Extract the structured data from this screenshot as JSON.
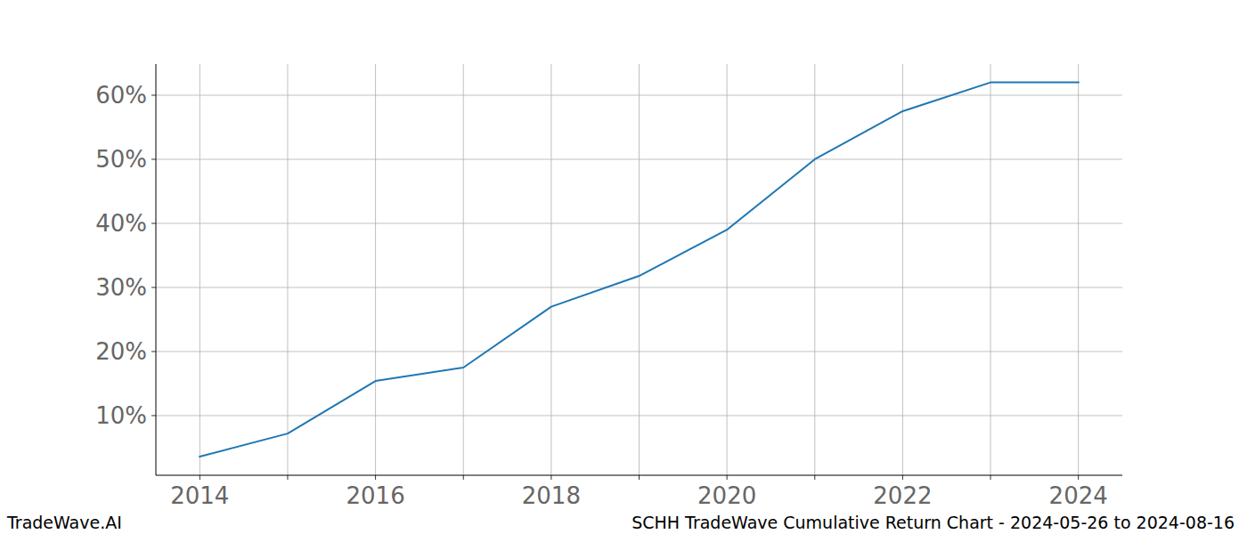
{
  "chart_data": {
    "type": "line",
    "title": "SCHH TradeWave Cumulative Return Chart - 2024-05-26 to 2024-08-16",
    "watermark": "TradeWave.AI",
    "x": [
      2014,
      2015,
      2016,
      2017,
      2018,
      2019,
      2020,
      2021,
      2022,
      2023,
      2024
    ],
    "series": [
      {
        "name": "SCHH",
        "color": "#1f77b4",
        "values": [
          3.6,
          7.2,
          15.4,
          17.5,
          27.0,
          31.8,
          39.0,
          50.0,
          57.5,
          62.0,
          62.0
        ]
      }
    ],
    "xlim": [
      2013.5,
      2024.5
    ],
    "xticks": [
      2014,
      {
        "value": 2015,
        "label": null
      },
      2016,
      {
        "value": 2017,
        "label": null
      },
      2018,
      {
        "value": 2019,
        "label": null
      },
      2020,
      {
        "value": 2021,
        "label": null
      },
      2022,
      {
        "value": 2023,
        "label": null
      },
      2024
    ],
    "ylim": [
      0.69,
      64.86
    ],
    "yticks": [
      {
        "value": 10,
        "label": "10%"
      },
      {
        "value": 20,
        "label": "20%"
      },
      {
        "value": 30,
        "label": "30%"
      },
      {
        "value": 40,
        "label": "40%"
      },
      {
        "value": 50,
        "label": "50%"
      },
      {
        "value": 60,
        "label": "60%"
      }
    ],
    "grid": true
  }
}
